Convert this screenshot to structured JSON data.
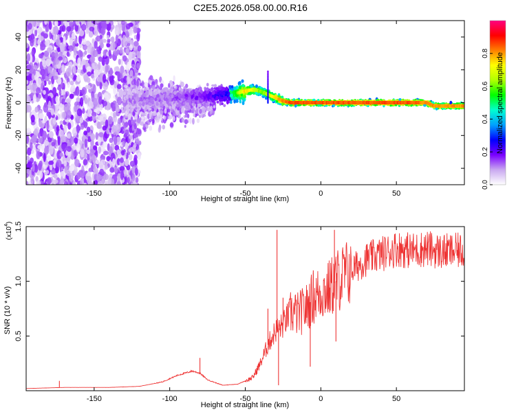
{
  "title": "C2E5.2026.058.00.00.R16",
  "chart_data": [
    {
      "type": "heatmap",
      "id": "spectrogram",
      "xlabel": "Height of straight line (km)",
      "ylabel": "Frequency (Hz)",
      "xlim": [
        -195,
        95
      ],
      "ylim": [
        -50,
        50
      ],
      "xticks": [
        -150,
        -100,
        -50,
        0,
        50
      ],
      "yticks": [
        -40,
        -20,
        0,
        20,
        40
      ],
      "colorbar": {
        "label": "Normalized spectral amplitude",
        "range": [
          0,
          1
        ],
        "ticks": [
          "0.0",
          "0.2",
          "0.4",
          "0.6",
          "0.8"
        ],
        "tick_values": [
          0.0,
          0.2,
          0.4,
          0.6,
          0.8
        ],
        "colormap": [
          "#ffffff",
          "#c9a8f0",
          "#7a00ff",
          "#0000ff",
          "#00a0ff",
          "#00ffd0",
          "#00ff00",
          "#b0ff00",
          "#ffff00",
          "#ff8000",
          "#ff0000",
          "#ff0080"
        ]
      },
      "ridge": {
        "description": "signal ridge frequency vs height",
        "x": [
          -130,
          -100,
          -75,
          -60,
          -50,
          -45,
          -40,
          -35,
          -30,
          -25,
          -20,
          0,
          20,
          40,
          60,
          70,
          75,
          80,
          95
        ],
        "frequency": [
          1,
          3,
          4,
          5,
          7,
          8,
          7,
          5,
          3,
          1,
          0,
          0,
          0,
          0,
          0,
          0,
          -2,
          -2,
          -2
        ],
        "amplitude": [
          0.2,
          0.25,
          0.35,
          0.5,
          0.75,
          0.7,
          0.6,
          0.65,
          0.75,
          0.8,
          0.85,
          0.85,
          0.85,
          0.85,
          0.85,
          0.8,
          0.8,
          0.8,
          0.8
        ]
      },
      "spike": {
        "x": -35,
        "frequency": [
          0,
          19
        ]
      }
    },
    {
      "type": "line",
      "id": "snr",
      "xlabel": "Height of straight line (km)",
      "ylabel": "SNR (10 * v/v)",
      "yscale_label": "(x10",
      "yscale_exp": "4",
      "yscale_close": ")",
      "xlim": [
        -195,
        95
      ],
      "ylim": [
        0,
        1.5
      ],
      "xticks": [
        -150,
        -100,
        -50,
        0,
        50
      ],
      "yticks": [
        0.5,
        1.0,
        1.5
      ],
      "ytick_labels": [
        "0.5",
        "1.0",
        "1.5"
      ],
      "color": "#ee3333",
      "series_envelope": {
        "x": [
          -195,
          -170,
          -140,
          -120,
          -105,
          -95,
          -85,
          -80,
          -75,
          -65,
          -55,
          -45,
          -40,
          -35,
          -30,
          -25,
          -20,
          -15,
          -10,
          -5,
          0,
          5,
          10,
          15,
          20,
          25,
          30,
          40,
          50,
          60,
          70,
          80,
          95
        ],
        "y": [
          0.02,
          0.03,
          0.03,
          0.04,
          0.08,
          0.14,
          0.18,
          0.16,
          0.1,
          0.05,
          0.06,
          0.12,
          0.25,
          0.42,
          0.55,
          0.6,
          0.72,
          0.7,
          0.75,
          0.85,
          0.9,
          0.92,
          1.0,
          1.05,
          1.1,
          1.15,
          1.2,
          1.25,
          1.3,
          1.28,
          1.3,
          1.27,
          1.28
        ]
      },
      "spikes": [
        {
          "x": -29,
          "y": 1.47
        },
        {
          "x": -28,
          "y": 0.05
        },
        {
          "x": -35,
          "y": 0.75
        },
        {
          "x": -25,
          "y": 0.85
        },
        {
          "x": -7,
          "y": 0.22
        },
        {
          "x": -5,
          "y": 1.1
        },
        {
          "x": 9,
          "y": 1.47
        },
        {
          "x": 10,
          "y": 0.45
        },
        {
          "x": -80,
          "y": 0.3
        },
        {
          "x": -173,
          "y": 0.09
        }
      ]
    }
  ]
}
